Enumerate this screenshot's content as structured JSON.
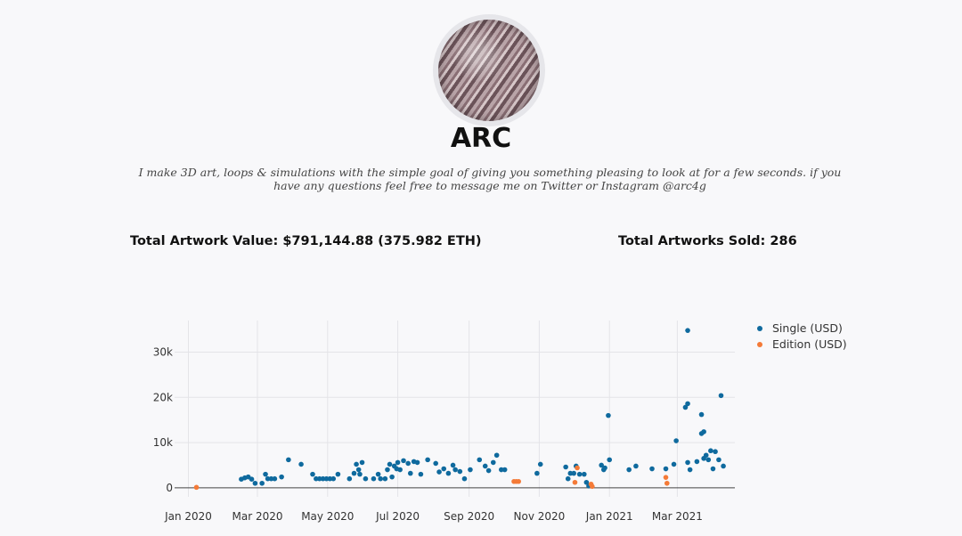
{
  "profile": {
    "name": "ARC",
    "bio": "I make 3D art, loops & simulations with the simple goal of giving you something pleasing to look at for a few seconds. if you have any questions feel free to message me on Twitter or Instagram @arc4g"
  },
  "stats": {
    "total_value": "Total Artwork Value: $791,144.88 (375.982 ETH)",
    "total_sold": "Total Artworks Sold: 286"
  },
  "chart_data": {
    "type": "scatter",
    "x_axis": {
      "type": "date",
      "range": [
        "2019-12-20",
        "2021-04-20"
      ],
      "ticks": [
        {
          "date": "2020-01-01",
          "label": "Jan 2020"
        },
        {
          "date": "2020-03-01",
          "label": "Mar 2020"
        },
        {
          "date": "2020-05-01",
          "label": "May 2020"
        },
        {
          "date": "2020-07-01",
          "label": "Jul 2020"
        },
        {
          "date": "2020-09-01",
          "label": "Sep 2020"
        },
        {
          "date": "2020-11-01",
          "label": "Nov 2020"
        },
        {
          "date": "2021-01-01",
          "label": "Jan 2021"
        },
        {
          "date": "2021-03-01",
          "label": "Mar 2021"
        }
      ]
    },
    "y_axis": {
      "range": [
        -2000,
        37000
      ],
      "ticks": [
        {
          "value": 0,
          "label": "0"
        },
        {
          "value": 10000,
          "label": "10k"
        },
        {
          "value": 20000,
          "label": "20k"
        },
        {
          "value": 30000,
          "label": "30k"
        }
      ]
    },
    "grid": true,
    "legend_position": "top-right",
    "series": [
      {
        "name": "Single (USD)",
        "color": "#0f6a9e",
        "points": [
          [
            "2020-02-16",
            1900
          ],
          [
            "2020-02-19",
            2200
          ],
          [
            "2020-02-22",
            2400
          ],
          [
            "2020-02-25",
            1900
          ],
          [
            "2020-02-28",
            1000
          ],
          [
            "2020-03-05",
            1000
          ],
          [
            "2020-03-08",
            3000
          ],
          [
            "2020-03-10",
            2000
          ],
          [
            "2020-03-13",
            2000
          ],
          [
            "2020-03-16",
            2000
          ],
          [
            "2020-03-22",
            2400
          ],
          [
            "2020-03-28",
            6200
          ],
          [
            "2020-04-08",
            5200
          ],
          [
            "2020-04-18",
            3000
          ],
          [
            "2020-04-21",
            2000
          ],
          [
            "2020-04-24",
            2000
          ],
          [
            "2020-04-27",
            2000
          ],
          [
            "2020-04-30",
            2000
          ],
          [
            "2020-05-03",
            2000
          ],
          [
            "2020-05-06",
            2000
          ],
          [
            "2020-05-10",
            3000
          ],
          [
            "2020-05-20",
            2000
          ],
          [
            "2020-05-24",
            3200
          ],
          [
            "2020-05-26",
            5200
          ],
          [
            "2020-05-28",
            4000
          ],
          [
            "2020-05-29",
            3000
          ],
          [
            "2020-05-31",
            5600
          ],
          [
            "2020-06-03",
            2000
          ],
          [
            "2020-06-10",
            2000
          ],
          [
            "2020-06-14",
            3000
          ],
          [
            "2020-06-16",
            2000
          ],
          [
            "2020-06-20",
            2000
          ],
          [
            "2020-06-22",
            4000
          ],
          [
            "2020-06-24",
            5200
          ],
          [
            "2020-06-26",
            2400
          ],
          [
            "2020-06-28",
            4800
          ],
          [
            "2020-06-30",
            4200
          ],
          [
            "2020-07-01",
            5600
          ],
          [
            "2020-07-03",
            4000
          ],
          [
            "2020-07-06",
            6000
          ],
          [
            "2020-07-10",
            5400
          ],
          [
            "2020-07-12",
            3200
          ],
          [
            "2020-07-15",
            5800
          ],
          [
            "2020-07-18",
            5600
          ],
          [
            "2020-07-21",
            3000
          ],
          [
            "2020-07-27",
            6200
          ],
          [
            "2020-08-03",
            5400
          ],
          [
            "2020-08-06",
            3500
          ],
          [
            "2020-08-10",
            4200
          ],
          [
            "2020-08-14",
            3200
          ],
          [
            "2020-08-18",
            5000
          ],
          [
            "2020-08-20",
            4000
          ],
          [
            "2020-08-24",
            3600
          ],
          [
            "2020-08-28",
            2000
          ],
          [
            "2020-09-02",
            4000
          ],
          [
            "2020-09-10",
            6200
          ],
          [
            "2020-09-15",
            4800
          ],
          [
            "2020-09-18",
            3800
          ],
          [
            "2020-09-22",
            5600
          ],
          [
            "2020-09-25",
            7200
          ],
          [
            "2020-09-29",
            4000
          ],
          [
            "2020-10-02",
            4000
          ],
          [
            "2020-10-30",
            3200
          ],
          [
            "2020-11-02",
            5200
          ],
          [
            "2020-11-24",
            4600
          ],
          [
            "2020-11-26",
            2000
          ],
          [
            "2020-11-28",
            3200
          ],
          [
            "2020-12-01",
            3200
          ],
          [
            "2020-12-03",
            4800
          ],
          [
            "2020-12-06",
            3000
          ],
          [
            "2020-12-10",
            3000
          ],
          [
            "2020-12-12",
            1200
          ],
          [
            "2020-12-14",
            400
          ],
          [
            "2020-12-25",
            5000
          ],
          [
            "2020-12-27",
            4000
          ],
          [
            "2020-12-28",
            4400
          ],
          [
            "2020-12-31",
            16000
          ],
          [
            "2021-01-01",
            6200
          ],
          [
            "2021-01-18",
            4000
          ],
          [
            "2021-01-24",
            4800
          ],
          [
            "2021-02-07",
            4200
          ],
          [
            "2021-02-19",
            4200
          ],
          [
            "2021-02-28",
            10400
          ],
          [
            "2021-02-26",
            5200
          ],
          [
            "2021-03-08",
            17800
          ],
          [
            "2021-03-10",
            18600
          ],
          [
            "2021-03-10",
            5600
          ],
          [
            "2021-03-12",
            4000
          ],
          [
            "2021-03-10",
            34800
          ],
          [
            "2021-03-18",
            5800
          ],
          [
            "2021-03-22",
            16200
          ],
          [
            "2021-03-22",
            12000
          ],
          [
            "2021-03-24",
            12400
          ],
          [
            "2021-03-24",
            6500
          ],
          [
            "2021-03-26",
            7200
          ],
          [
            "2021-03-28",
            6200
          ],
          [
            "2021-03-30",
            8200
          ],
          [
            "2021-04-01",
            4200
          ],
          [
            "2021-04-03",
            8000
          ],
          [
            "2021-04-06",
            6200
          ],
          [
            "2021-04-08",
            20400
          ],
          [
            "2021-04-10",
            4800
          ]
        ]
      },
      {
        "name": "Edition (USD)",
        "color": "#f47a37",
        "points": [
          [
            "2020-01-08",
            100
          ],
          [
            "2020-10-10",
            1400
          ],
          [
            "2020-10-12",
            1400
          ],
          [
            "2020-10-14",
            1400
          ],
          [
            "2020-12-02",
            1200
          ],
          [
            "2020-12-04",
            4400
          ],
          [
            "2020-12-16",
            800
          ],
          [
            "2020-12-17",
            300
          ],
          [
            "2021-02-19",
            2300
          ],
          [
            "2021-02-20",
            1000
          ]
        ]
      }
    ]
  }
}
